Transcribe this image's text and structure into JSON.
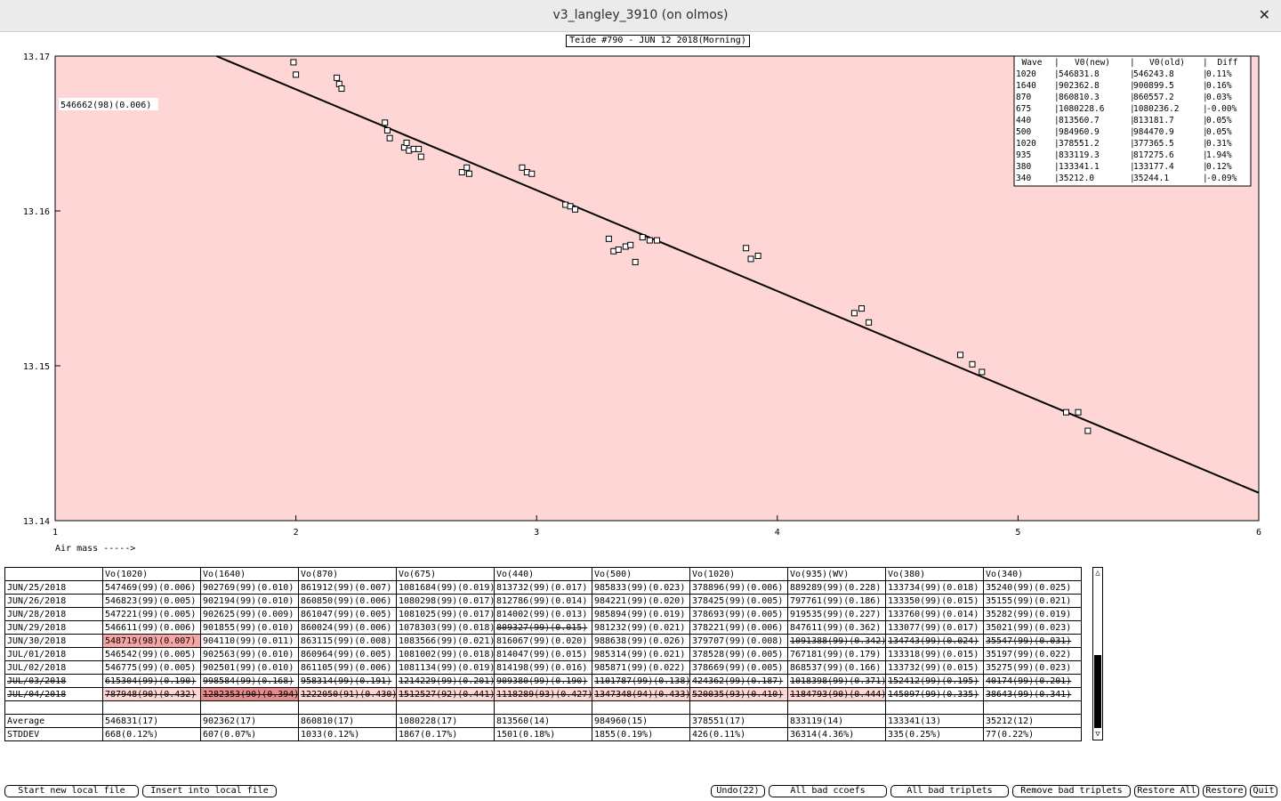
{
  "window": {
    "title": "v3_langley_3910 (on olmos)",
    "close_glyph": "✕"
  },
  "chart_title": "Teide #790 - JUN 12 2018(Morning)",
  "chart_data": {
    "type": "scatter",
    "xlim": [
      1,
      6
    ],
    "ylim": [
      13.14,
      13.17
    ],
    "x_ticks": [
      "1",
      "2",
      "3",
      "4",
      "5",
      "6"
    ],
    "y_ticks": [
      "13.14",
      "13.15",
      "13.16",
      "13.17"
    ],
    "xlabel": "Air mass ----->",
    "fit_annotation": "546662(98)(0.006)",
    "fit_line": [
      [
        1.67,
        13.17
      ],
      [
        6.0,
        13.1418
      ]
    ],
    "points": [
      [
        1.99,
        13.1696
      ],
      [
        2.0,
        13.1688
      ],
      [
        2.17,
        13.1686
      ],
      [
        2.18,
        13.1682
      ],
      [
        2.19,
        13.1679
      ],
      [
        2.37,
        13.1657
      ],
      [
        2.38,
        13.1652
      ],
      [
        2.39,
        13.1647
      ],
      [
        2.45,
        13.1641
      ],
      [
        2.46,
        13.1644
      ],
      [
        2.47,
        13.1639
      ],
      [
        2.49,
        13.164
      ],
      [
        2.51,
        13.164
      ],
      [
        2.52,
        13.1635
      ],
      [
        2.69,
        13.1625
      ],
      [
        2.71,
        13.1628
      ],
      [
        2.72,
        13.1624
      ],
      [
        2.94,
        13.1628
      ],
      [
        2.96,
        13.1625
      ],
      [
        2.98,
        13.1624
      ],
      [
        3.12,
        13.1604
      ],
      [
        3.14,
        13.1603
      ],
      [
        3.16,
        13.1601
      ],
      [
        3.3,
        13.1582
      ],
      [
        3.32,
        13.1574
      ],
      [
        3.34,
        13.1575
      ],
      [
        3.37,
        13.1577
      ],
      [
        3.39,
        13.1578
      ],
      [
        3.41,
        13.1567
      ],
      [
        3.44,
        13.1583
      ],
      [
        3.47,
        13.1581
      ],
      [
        3.5,
        13.1581
      ],
      [
        3.87,
        13.1576
      ],
      [
        3.89,
        13.1569
      ],
      [
        3.92,
        13.1571
      ],
      [
        4.32,
        13.1534
      ],
      [
        4.35,
        13.1537
      ],
      [
        4.38,
        13.1528
      ],
      [
        4.76,
        13.1507
      ],
      [
        4.81,
        13.1501
      ],
      [
        4.85,
        13.1496
      ],
      [
        5.2,
        13.147
      ],
      [
        5.25,
        13.147
      ],
      [
        5.29,
        13.1458
      ]
    ],
    "legend_table": {
      "headers": [
        "Wave",
        "V0(new)",
        "V0(old)",
        "Diff"
      ],
      "rows": [
        [
          "1020",
          "546831.8",
          "546243.8",
          "0.11%"
        ],
        [
          "1640",
          "902362.8",
          "900899.5",
          "0.16%"
        ],
        [
          "870",
          "860810.3",
          "860557.2",
          "0.03%"
        ],
        [
          "675",
          "1080228.6",
          "1080236.2",
          "-0.00%"
        ],
        [
          "440",
          "813560.7",
          "813181.7",
          "0.05%"
        ],
        [
          "500",
          "984960.9",
          "984470.9",
          "0.05%"
        ],
        [
          "1020",
          "378551.2",
          "377365.5",
          "0.31%"
        ],
        [
          "935",
          "833119.3",
          "817275.6",
          "1.94%"
        ],
        [
          "380",
          "133341.1",
          "133177.4",
          "0.12%"
        ],
        [
          "340",
          "35212.0",
          "35244.1",
          "-0.09%"
        ]
      ]
    }
  },
  "table": {
    "headers": [
      "",
      "Vo(1020)",
      "Vo(1640)",
      "Vo(870)",
      "Vo(675)",
      "Vo(440)",
      "Vo(500)",
      "Vo(1020)",
      "Vo(935)(WV)",
      "Vo(380)",
      "Vo(340)"
    ],
    "rows": [
      [
        "JUN/25/2018",
        "547469(99)(0.006)",
        "902769(99)(0.010)",
        "861912(99)(0.007)",
        "1081684(99)(0.019)",
        "813732(99)(0.017)",
        "985833(99)(0.023)",
        "378896(99)(0.006)",
        "889289(99)(0.228)",
        "133734(99)(0.018)",
        "35240(99)(0.025)"
      ],
      [
        "JUN/26/2018",
        "546823(99)(0.005)",
        "902194(99)(0.010)",
        "860850(99)(0.006)",
        "1080298(99)(0.017)",
        "812786(99)(0.014)",
        "984221(99)(0.020)",
        "378425(99)(0.005)",
        "797761(99)(0.186)",
        "133350(99)(0.015)",
        "35155(99)(0.021)"
      ],
      [
        "JUN/28/2018",
        "547221(99)(0.005)",
        "902625(99)(0.009)",
        "861047(99)(0.005)",
        "1081025(99)(0.017)",
        "814002(99)(0.013)",
        "985894(99)(0.019)",
        "378693(99)(0.005)",
        "919535(99)(0.227)",
        "133760(99)(0.014)",
        "35282(99)(0.019)"
      ],
      [
        "JUN/29/2018",
        "546611(99)(0.006)",
        "901855(99)(0.010)",
        "860024(99)(0.006)",
        "1078303(99)(0.018)",
        "809327(99)(0.015)",
        "981232(99)(0.021)",
        "378221(99)(0.006)",
        "847611(99)(0.362)",
        "133077(99)(0.017)",
        "35021(99)(0.023)"
      ],
      [
        "JUN/30/2018",
        "548719(98)(0.007)",
        "904110(99)(0.011)",
        "863115(99)(0.008)",
        "1083566(99)(0.021)",
        "816067(99)(0.020)",
        "988638(99)(0.026)",
        "379707(99)(0.008)",
        "1091388(99)(0.342)",
        "134743(99)(0.024)",
        "35547(99)(0.031)"
      ],
      [
        "JUL/01/2018",
        "546542(99)(0.005)",
        "902563(99)(0.010)",
        "860964(99)(0.005)",
        "1081002(99)(0.018)",
        "814047(99)(0.015)",
        "985314(99)(0.021)",
        "378528(99)(0.005)",
        "767181(99)(0.179)",
        "133318(99)(0.015)",
        "35197(99)(0.022)"
      ],
      [
        "JUL/02/2018",
        "546775(99)(0.005)",
        "902501(99)(0.010)",
        "861105(99)(0.006)",
        "1081134(99)(0.019)",
        "814198(99)(0.016)",
        "985871(99)(0.022)",
        "378669(99)(0.005)",
        "868537(99)(0.166)",
        "133732(99)(0.015)",
        "35275(99)(0.023)"
      ],
      [
        "JUL/03/2018",
        "615304(99)(0.190)",
        "998584(99)(0.168)",
        "958314(99)(0.191)",
        "1214229(99)(0.201)",
        "909380(99)(0.190)",
        "1101787(99)(0.138)",
        "424362(99)(0.187)",
        "1018398(99)(0.371)",
        "152412(99)(0.195)",
        "40174(99)(0.201)"
      ],
      [
        "JUL/04/2018",
        "787948(90)(0.432)",
        "1282353(90)(0.394)",
        "1222050(91)(0.430)",
        "1512527(92)(0.441)",
        "1118289(93)(0.427)",
        "1347348(94)(0.433)",
        "520035(93)(0.410)",
        "1184793(90)(0.444)",
        "145097(99)(0.335)",
        "38643(99)(0.341)"
      ]
    ],
    "average": [
      "Average",
      "546831(17)",
      "902362(17)",
      "860810(17)",
      "1080228(17)",
      "813560(14)",
      "984960(15)",
      "378551(17)",
      "833119(14)",
      "133341(13)",
      "35212(12)"
    ],
    "stddev": [
      "STDDEV",
      " 668(0.12%)",
      " 607(0.07%)",
      "1033(0.12%)",
      "1867(0.17%)",
      "1501(0.18%)",
      "1855(0.19%)",
      " 426(0.11%)",
      "36314(4.36%)",
      " 335(0.25%)",
      "  77(0.22%)"
    ]
  },
  "scrollbar": {
    "up": "△",
    "down": "▽"
  },
  "buttons": {
    "start_new": "Start new local file",
    "insert": "Insert into local file",
    "undo": "Undo(22)",
    "all_bad_ccoefs": "All bad ccoefs",
    "all_bad_triplets": "All bad triplets",
    "remove_bad_triplets": "Remove bad triplets",
    "restore_all": "Restore All",
    "restore": "Restore",
    "quit": "Quit"
  }
}
